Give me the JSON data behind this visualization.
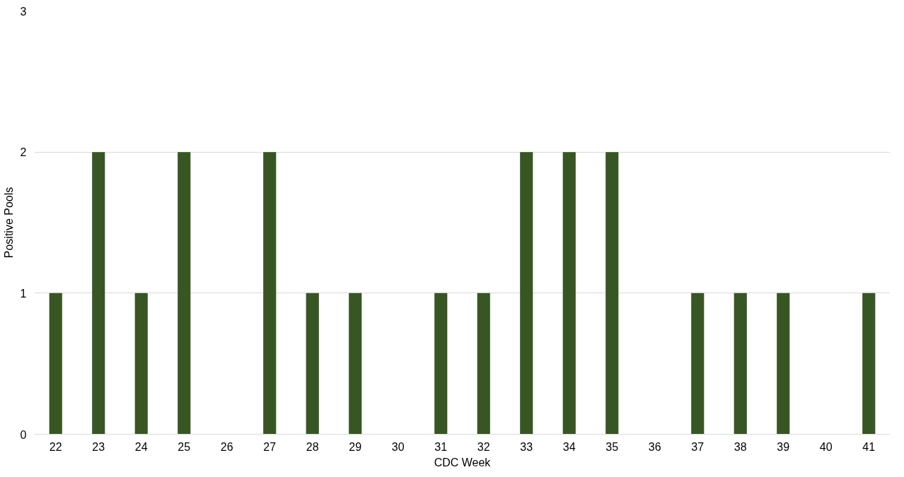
{
  "chart_data": {
    "type": "bar",
    "xlabel": "CDC Week",
    "ylabel": "Positive Pools",
    "categories": [
      "22",
      "23",
      "24",
      "25",
      "26",
      "27",
      "28",
      "29",
      "30",
      "31",
      "32",
      "33",
      "34",
      "35",
      "36",
      "37",
      "38",
      "39",
      "40",
      "41"
    ],
    "series": [
      {
        "color": "#375623",
        "values": [
          1,
          2,
          1,
          2,
          0,
          2,
          1,
          1,
          0,
          1,
          1,
          2,
          2,
          2,
          0,
          1,
          1,
          1,
          0,
          1
        ]
      }
    ],
    "ylim": [
      0,
      3
    ],
    "yticks": [
      0,
      1,
      2,
      3
    ],
    "grid": "y"
  }
}
